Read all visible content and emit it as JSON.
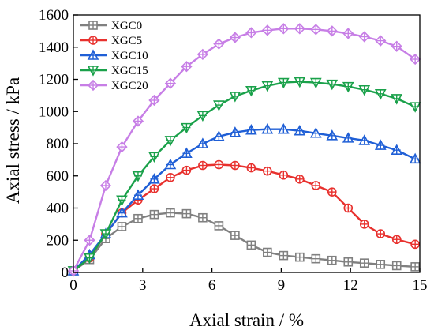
{
  "chart_data": {
    "type": "line",
    "xlabel": "Axial strain / %",
    "ylabel": "Axial stress / kPa",
    "xlim": [
      0,
      15
    ],
    "ylim": [
      0,
      1600
    ],
    "xticks": [
      0,
      3,
      6,
      9,
      12,
      15
    ],
    "xtick_labels": [
      "0",
      "3",
      "6",
      "9",
      "12",
      "15"
    ],
    "yticks": [
      0,
      200,
      400,
      600,
      800,
      1000,
      1200,
      1400,
      1600
    ],
    "ytick_labels": [
      "0",
      "200",
      "400",
      "600",
      "800",
      "1000",
      "1200",
      "1400",
      "1600"
    ],
    "grid": false,
    "legend_position": "top-left",
    "series": [
      {
        "name": "XGC0",
        "color": "#808080",
        "marker": "square-cross",
        "x": [
          0,
          0.7,
          1.4,
          2.1,
          2.8,
          3.5,
          4.2,
          4.9,
          5.6,
          6.3,
          7.0,
          7.7,
          8.4,
          9.1,
          9.8,
          10.5,
          11.2,
          11.9,
          12.6,
          13.3,
          14.0,
          14.8
        ],
        "y": [
          10,
          80,
          210,
          285,
          335,
          360,
          370,
          365,
          340,
          290,
          230,
          170,
          125,
          105,
          95,
          85,
          75,
          65,
          58,
          50,
          42,
          35
        ]
      },
      {
        "name": "XGC5",
        "color": "#e8312e",
        "marker": "circle-cross",
        "x": [
          0,
          0.7,
          1.4,
          2.1,
          2.8,
          3.5,
          4.2,
          4.9,
          5.6,
          6.3,
          7.0,
          7.7,
          8.4,
          9.1,
          9.8,
          10.5,
          11.2,
          11.9,
          12.6,
          13.3,
          14.0,
          14.8
        ],
        "y": [
          10,
          90,
          240,
          370,
          450,
          520,
          590,
          635,
          665,
          670,
          665,
          650,
          630,
          605,
          580,
          540,
          500,
          400,
          300,
          240,
          205,
          175
        ]
      },
      {
        "name": "XGC10",
        "color": "#1f5fd6",
        "marker": "triangle-up-cross",
        "x": [
          0,
          0.7,
          1.4,
          2.1,
          2.8,
          3.5,
          4.2,
          4.9,
          5.6,
          6.3,
          7.0,
          7.7,
          8.4,
          9.1,
          9.8,
          10.5,
          11.2,
          11.9,
          12.6,
          13.3,
          14.0,
          14.8
        ],
        "y": [
          10,
          110,
          240,
          370,
          480,
          580,
          670,
          740,
          800,
          845,
          870,
          885,
          890,
          890,
          880,
          865,
          850,
          835,
          820,
          790,
          760,
          705
        ]
      },
      {
        "name": "XGC15",
        "color": "#1aa14a",
        "marker": "triangle-down-cross",
        "x": [
          0,
          0.7,
          1.4,
          2.1,
          2.8,
          3.5,
          4.2,
          4.9,
          5.6,
          6.3,
          7.0,
          7.7,
          8.4,
          9.1,
          9.8,
          10.5,
          11.2,
          11.9,
          12.6,
          13.3,
          14.0,
          14.8
        ],
        "y": [
          10,
          90,
          240,
          450,
          600,
          720,
          820,
          900,
          975,
          1040,
          1095,
          1130,
          1160,
          1180,
          1185,
          1180,
          1170,
          1155,
          1135,
          1110,
          1080,
          1030
        ]
      },
      {
        "name": "XGC20",
        "color": "#c77ee6",
        "marker": "diamond-cross",
        "x": [
          0,
          0.7,
          1.4,
          2.1,
          2.8,
          3.5,
          4.2,
          4.9,
          5.6,
          6.3,
          7.0,
          7.7,
          8.4,
          9.1,
          9.8,
          10.5,
          11.2,
          11.9,
          12.6,
          13.3,
          14.0,
          14.8
        ],
        "y": [
          10,
          200,
          540,
          780,
          940,
          1070,
          1175,
          1280,
          1355,
          1420,
          1460,
          1490,
          1505,
          1515,
          1515,
          1510,
          1500,
          1485,
          1465,
          1440,
          1405,
          1325
        ]
      }
    ]
  }
}
